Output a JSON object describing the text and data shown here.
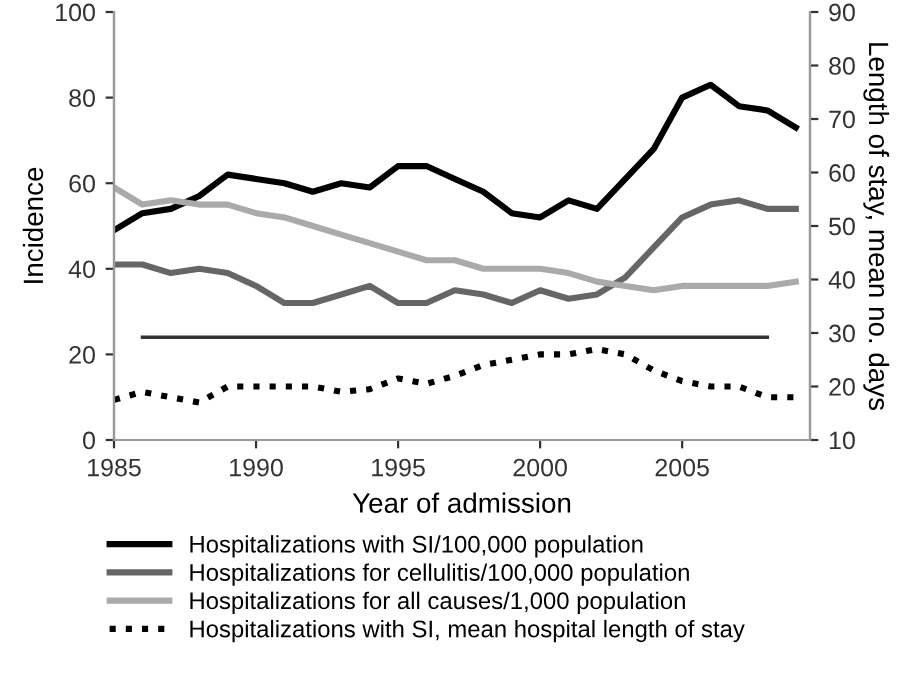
{
  "chart_data": {
    "type": "line",
    "xlabel": "Year of admission",
    "ylabel": "Incidence",
    "y2label": "Length of stay, mean no. days",
    "x": [
      1985,
      1986,
      1987,
      1988,
      1989,
      1990,
      1991,
      1992,
      1993,
      1994,
      1995,
      1996,
      1997,
      1998,
      1999,
      2000,
      2001,
      2002,
      2003,
      2004,
      2005,
      2006,
      2007,
      2008,
      2009
    ],
    "series": [
      {
        "name": "Hospitalizations with SI/100,000 population",
        "color": "#000000",
        "line_style": "solid",
        "values": [
          49,
          53,
          54,
          57,
          62,
          61,
          60,
          58,
          60,
          59,
          64,
          64,
          61,
          58,
          53,
          52,
          56,
          54,
          61,
          68,
          80,
          83,
          78,
          77,
          73
        ]
      },
      {
        "name": "Hospitalizations for cellulitis/100,000 population",
        "color": "#666666",
        "line_style": "solid",
        "values": [
          41,
          41,
          39,
          40,
          39,
          36,
          32,
          32,
          34,
          36,
          32,
          32,
          35,
          34,
          32,
          35,
          33,
          34,
          38,
          45,
          52,
          55,
          56,
          54,
          54
        ]
      },
      {
        "name": "Hospitalizations for all causes/1,000 population",
        "color": "#aaaaaa",
        "line_style": "solid",
        "values": [
          59,
          55,
          56,
          55,
          55,
          53,
          52,
          50,
          48,
          46,
          44,
          42,
          42,
          40,
          40,
          40,
          39,
          37,
          36,
          35,
          36,
          36,
          36,
          36,
          37
        ]
      },
      {
        "name": "Hospitalizations with SI, mean hospital length of stay",
        "color": "#000000",
        "line_style": "dotted",
        "axis": "y2",
        "values": [
          17.5,
          19,
          18,
          17,
          20,
          20,
          20,
          20,
          19,
          19.5,
          21.5,
          20.5,
          22,
          24,
          25,
          26,
          26,
          27,
          26,
          23,
          21,
          20,
          20,
          18,
          18
        ]
      },
      {
        "color": "#333333",
        "line_style": "solid",
        "x": [
          1986,
          2008
        ],
        "values": [
          24,
          24
        ]
      }
    ],
    "xlim": [
      1985,
      2009.5
    ],
    "xticks": [
      1985,
      1990,
      1995,
      2000,
      2005
    ],
    "ylim": [
      0,
      100
    ],
    "yticks": [
      0,
      20,
      40,
      60,
      80,
      100
    ],
    "y2lim": [
      10,
      90
    ],
    "y2ticks": [
      10,
      20,
      30,
      40,
      50,
      60,
      70,
      80,
      90
    ],
    "grid": false,
    "legend": "bottom",
    "marker": "none"
  }
}
